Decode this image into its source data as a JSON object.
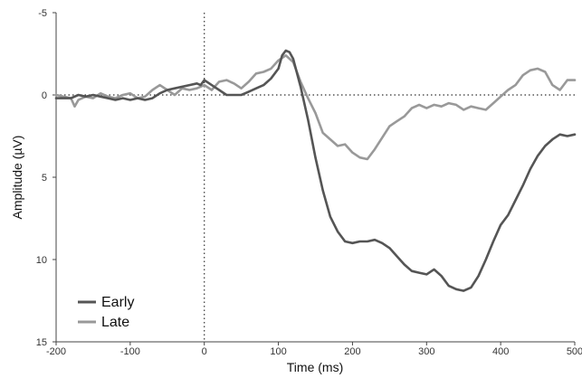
{
  "chart_data": {
    "type": "line",
    "xlabel": "Time (ms)",
    "ylabel": "Amplitude (µV)",
    "xlim": [
      -200,
      500
    ],
    "ylim": [
      -5,
      15
    ],
    "y_inverted": true,
    "x_ticks": [
      -200,
      -100,
      0,
      100,
      200,
      300,
      400,
      500
    ],
    "x_tick_labels": [
      "-200",
      "-100",
      "0",
      "100",
      "200",
      "300",
      "400",
      "500"
    ],
    "y_ticks": [
      -5,
      0,
      5,
      10,
      15
    ],
    "y_tick_labels": [
      "-5",
      "0",
      "5",
      "10",
      "15"
    ],
    "reference_lines": {
      "x_zero": "dotted",
      "y_zero": "dotted"
    },
    "legend_position": "bottom-left",
    "series": [
      {
        "name": "Early",
        "color": "#555555",
        "points": [
          [
            -200,
            0.2
          ],
          [
            -190,
            0.2
          ],
          [
            -180,
            0.2
          ],
          [
            -170,
            0
          ],
          [
            -160,
            0.1
          ],
          [
            -150,
            0
          ],
          [
            -140,
            0.1
          ],
          [
            -130,
            0.2
          ],
          [
            -120,
            0.3
          ],
          [
            -110,
            0.2
          ],
          [
            -100,
            0.3
          ],
          [
            -90,
            0.2
          ],
          [
            -80,
            0.3
          ],
          [
            -70,
            0.2
          ],
          [
            -60,
            -0.1
          ],
          [
            -50,
            -0.3
          ],
          [
            -40,
            -0.4
          ],
          [
            -30,
            -0.5
          ],
          [
            -20,
            -0.6
          ],
          [
            -10,
            -0.7
          ],
          [
            -5,
            -0.6
          ],
          [
            0,
            -0.9
          ],
          [
            10,
            -0.6
          ],
          [
            20,
            -0.3
          ],
          [
            30,
            0
          ],
          [
            40,
            0
          ],
          [
            50,
            0
          ],
          [
            60,
            -0.2
          ],
          [
            70,
            -0.4
          ],
          [
            80,
            -0.6
          ],
          [
            90,
            -1.0
          ],
          [
            100,
            -1.6
          ],
          [
            105,
            -2.4
          ],
          [
            110,
            -2.7
          ],
          [
            115,
            -2.6
          ],
          [
            120,
            -2.2
          ],
          [
            130,
            -0.5
          ],
          [
            140,
            1.5
          ],
          [
            150,
            3.8
          ],
          [
            160,
            5.8
          ],
          [
            170,
            7.4
          ],
          [
            180,
            8.3
          ],
          [
            190,
            8.9
          ],
          [
            200,
            9.0
          ],
          [
            210,
            8.9
          ],
          [
            220,
            8.9
          ],
          [
            230,
            8.8
          ],
          [
            240,
            9.0
          ],
          [
            250,
            9.3
          ],
          [
            260,
            9.8
          ],
          [
            270,
            10.3
          ],
          [
            280,
            10.7
          ],
          [
            290,
            10.8
          ],
          [
            300,
            10.9
          ],
          [
            310,
            10.6
          ],
          [
            320,
            11.0
          ],
          [
            330,
            11.6
          ],
          [
            340,
            11.8
          ],
          [
            350,
            11.9
          ],
          [
            360,
            11.7
          ],
          [
            370,
            11.0
          ],
          [
            380,
            10.0
          ],
          [
            390,
            8.9
          ],
          [
            400,
            7.9
          ],
          [
            410,
            7.3
          ],
          [
            420,
            6.4
          ],
          [
            430,
            5.5
          ],
          [
            440,
            4.5
          ],
          [
            450,
            3.7
          ],
          [
            460,
            3.1
          ],
          [
            470,
            2.7
          ],
          [
            480,
            2.4
          ],
          [
            490,
            2.5
          ],
          [
            500,
            2.4
          ]
        ]
      },
      {
        "name": "Late",
        "color": "#999999",
        "points": [
          [
            -200,
            0
          ],
          [
            -190,
            0.1
          ],
          [
            -180,
            0.2
          ],
          [
            -175,
            0.7
          ],
          [
            -170,
            0.3
          ],
          [
            -160,
            0.1
          ],
          [
            -150,
            0.2
          ],
          [
            -140,
            -0.1
          ],
          [
            -130,
            0.1
          ],
          [
            -120,
            0.2
          ],
          [
            -110,
            0
          ],
          [
            -100,
            -0.1
          ],
          [
            -90,
            0.2
          ],
          [
            -80,
            0.1
          ],
          [
            -70,
            -0.3
          ],
          [
            -60,
            -0.6
          ],
          [
            -50,
            -0.3
          ],
          [
            -40,
            0
          ],
          [
            -30,
            -0.4
          ],
          [
            -20,
            -0.3
          ],
          [
            -10,
            -0.4
          ],
          [
            0,
            -0.6
          ],
          [
            10,
            -0.3
          ],
          [
            20,
            -0.8
          ],
          [
            30,
            -0.9
          ],
          [
            40,
            -0.7
          ],
          [
            50,
            -0.4
          ],
          [
            60,
            -0.8
          ],
          [
            70,
            -1.3
          ],
          [
            80,
            -1.4
          ],
          [
            90,
            -1.6
          ],
          [
            100,
            -2.1
          ],
          [
            110,
            -2.4
          ],
          [
            120,
            -2.0
          ],
          [
            130,
            -0.8
          ],
          [
            140,
            0.2
          ],
          [
            150,
            1.1
          ],
          [
            160,
            2.3
          ],
          [
            170,
            2.7
          ],
          [
            180,
            3.1
          ],
          [
            190,
            3.0
          ],
          [
            200,
            3.5
          ],
          [
            210,
            3.8
          ],
          [
            220,
            3.9
          ],
          [
            230,
            3.3
          ],
          [
            240,
            2.6
          ],
          [
            250,
            1.9
          ],
          [
            260,
            1.6
          ],
          [
            270,
            1.3
          ],
          [
            280,
            0.8
          ],
          [
            290,
            0.6
          ],
          [
            300,
            0.8
          ],
          [
            310,
            0.6
          ],
          [
            320,
            0.7
          ],
          [
            330,
            0.5
          ],
          [
            340,
            0.6
          ],
          [
            350,
            0.9
          ],
          [
            360,
            0.7
          ],
          [
            370,
            0.8
          ],
          [
            380,
            0.9
          ],
          [
            390,
            0.5
          ],
          [
            400,
            0.1
          ],
          [
            410,
            -0.3
          ],
          [
            420,
            -0.6
          ],
          [
            430,
            -1.2
          ],
          [
            440,
            -1.5
          ],
          [
            450,
            -1.6
          ],
          [
            460,
            -1.4
          ],
          [
            470,
            -0.6
          ],
          [
            480,
            -0.3
          ],
          [
            490,
            -0.9
          ],
          [
            500,
            -0.9
          ]
        ]
      }
    ]
  }
}
